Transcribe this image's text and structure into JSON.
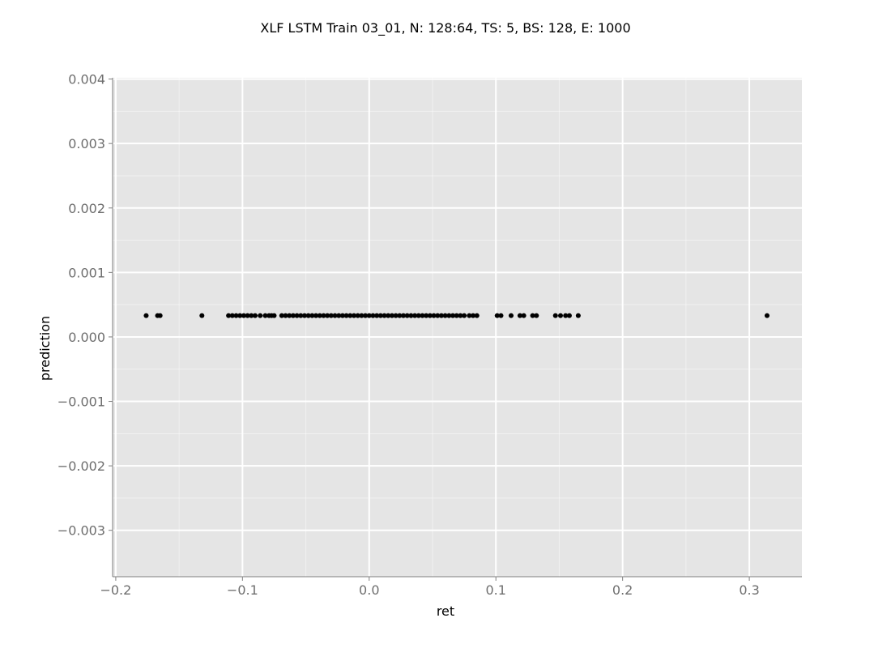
{
  "chart_data": {
    "type": "scatter",
    "title": "XLF LSTM Train 03_01, N: 128:64, TS: 5, BS: 128, E: 1000",
    "xlabel": "ret",
    "ylabel": "prediction",
    "xlim": [
      -0.2025,
      0.3415
    ],
    "ylim": [
      -0.00372,
      0.00402
    ],
    "x_ticks": [
      -0.2,
      -0.1,
      0.0,
      0.1,
      0.2,
      0.3
    ],
    "x_tick_labels": [
      "−0.2",
      "−0.1",
      "0.0",
      "0.1",
      "0.2",
      "0.3"
    ],
    "y_ticks": [
      0.004,
      0.003,
      0.002,
      0.001,
      0.0,
      -0.001,
      -0.002,
      -0.003
    ],
    "y_tick_labels": [
      "0.004",
      "0.003",
      "0.002",
      "0.001",
      "0.000",
      "−0.001",
      "−0.002",
      "−0.003"
    ],
    "grid": true,
    "colors": {
      "panel": "#e5e5e5",
      "grid": "#ffffff",
      "point": "#000000"
    },
    "series": [
      {
        "y_value": 0.00033,
        "x": [
          -0.176,
          -0.167,
          -0.165,
          -0.132,
          -0.111,
          -0.108,
          -0.105,
          -0.102,
          -0.099,
          -0.096,
          -0.093,
          -0.09,
          -0.086,
          -0.082,
          -0.079,
          -0.077,
          -0.075,
          -0.069,
          -0.066,
          -0.063,
          -0.06,
          -0.057,
          -0.054,
          -0.051,
          -0.048,
          -0.045,
          -0.042,
          -0.039,
          -0.036,
          -0.033,
          -0.03,
          -0.027,
          -0.024,
          -0.021,
          -0.018,
          -0.015,
          -0.012,
          -0.009,
          -0.006,
          -0.003,
          0.0,
          0.003,
          0.006,
          0.009,
          0.012,
          0.015,
          0.018,
          0.021,
          0.024,
          0.027,
          0.03,
          0.033,
          0.036,
          0.039,
          0.042,
          0.045,
          0.048,
          0.051,
          0.054,
          0.057,
          0.06,
          0.063,
          0.066,
          0.069,
          0.072,
          0.075,
          0.079,
          0.082,
          0.085,
          0.101,
          0.104,
          0.112,
          0.119,
          0.122,
          0.129,
          0.132,
          0.147,
          0.151,
          0.155,
          0.158,
          0.165,
          0.314
        ]
      }
    ]
  }
}
